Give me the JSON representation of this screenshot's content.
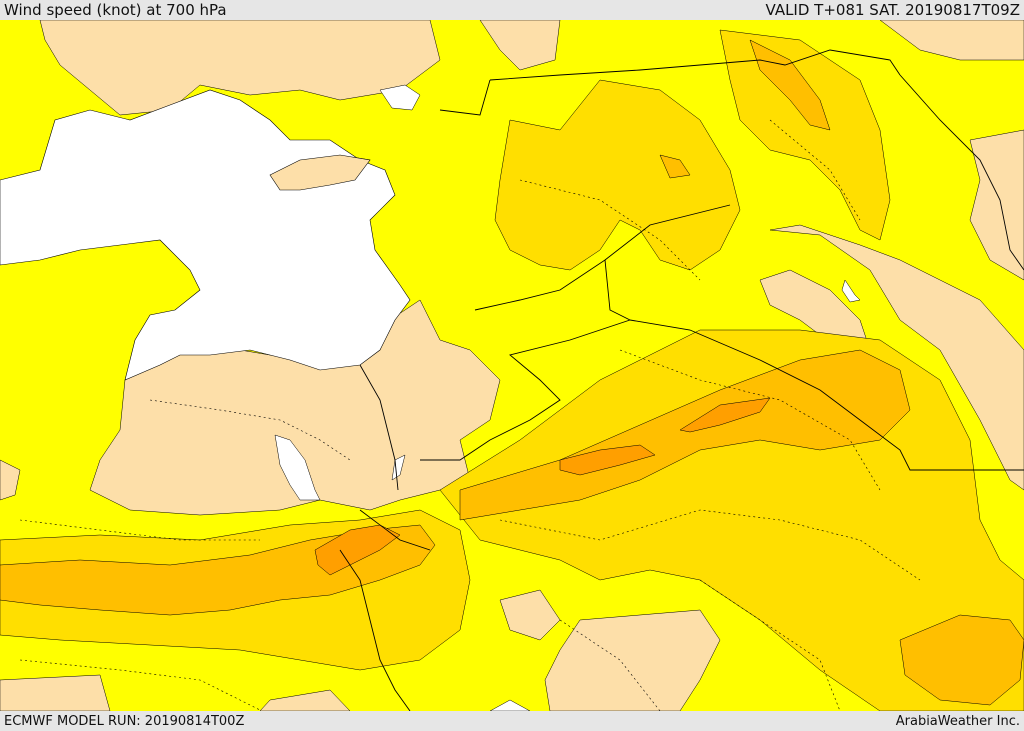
{
  "header": {
    "title": "Wind speed (knot) at 700 hPa",
    "valid": "VALID T+081 SAT. 20190817T09Z"
  },
  "footer": {
    "model_run": "ECMWF MODEL RUN: 20190814T00Z",
    "credit": "ArabiaWeather Inc."
  },
  "legend_colors": {
    "sea": "#ffffff",
    "calm": "#fddfa9",
    "band_1": "#ffff00",
    "band_2": "#ffdf00",
    "band_3": "#ffbf00",
    "band_4": "#ff9f00",
    "contour": "#000000"
  }
}
